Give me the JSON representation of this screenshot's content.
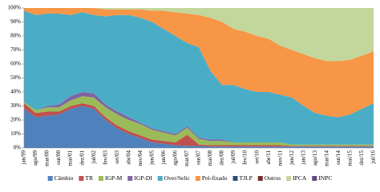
{
  "chart_data": {
    "type": "stacked-area",
    "categories": [
      "jan/99",
      "ago/99",
      "mar/00",
      "out/00",
      "mai/01",
      "dez/01",
      "jul/02",
      "fev/03",
      "set/03",
      "abr/04",
      "nov/04",
      "jun/05",
      "jan/06",
      "ago/06",
      "mar/07",
      "out/07",
      "mai/08",
      "dez/08",
      "jul/09",
      "fev/10",
      "set/10",
      "abr/11",
      "nov/11",
      "jun/12",
      "jan/13",
      "ago/13",
      "mar/14",
      "out/14",
      "mai/15",
      "dez/15",
      "jul/16"
    ],
    "ylim": [
      0,
      100
    ],
    "yticks": [
      {
        "value": 0,
        "label": "0%"
      },
      {
        "value": 10,
        "label": "10%"
      },
      {
        "value": 20,
        "label": "20%"
      },
      {
        "value": 30,
        "label": "30%"
      },
      {
        "value": 40,
        "label": "40%"
      },
      {
        "value": 50,
        "label": "50%"
      },
      {
        "value": 60,
        "label": "60%"
      },
      {
        "value": 70,
        "label": "70%"
      },
      {
        "value": 80,
        "label": "80%"
      },
      {
        "value": 90,
        "label": "90%"
      },
      {
        "value": 100,
        "label": "100%"
      }
    ],
    "series": [
      {
        "name": "Câmbio",
        "color": "#4f81bd",
        "values": [
          28,
          22,
          23,
          24,
          28,
          30,
          28,
          20,
          14,
          10,
          7,
          4,
          3,
          2,
          1.5,
          1.5,
          1,
          1,
          1,
          1,
          1,
          1,
          1,
          1,
          1,
          1,
          1,
          1,
          1,
          1,
          1
        ]
      },
      {
        "name": "TR",
        "color": "#c0504d",
        "values": [
          4,
          3,
          3,
          2,
          2,
          2,
          2,
          2,
          2,
          2,
          2,
          2,
          2,
          2,
          8,
          1,
          1,
          1,
          1,
          1,
          1,
          1,
          1,
          0.5,
          0.5,
          0.5,
          0.5,
          0.5,
          0.5,
          0.5,
          0.5
        ]
      },
      {
        "name": "IGP-M",
        "color": "#9bbb59",
        "values": [
          1,
          2,
          3,
          3,
          4,
          5,
          6,
          7,
          8,
          8,
          8,
          7,
          6,
          5,
          5,
          4,
          3,
          3,
          2,
          2,
          2,
          2,
          2,
          1,
          1,
          1,
          1,
          1,
          1,
          1,
          1
        ]
      },
      {
        "name": "IGP-DI",
        "color": "#8064a2",
        "values": [
          0,
          0,
          1,
          2,
          3,
          3,
          3,
          2,
          2,
          2,
          1,
          1,
          1,
          1,
          1,
          1,
          1,
          1,
          0,
          0,
          0,
          0,
          0,
          0,
          0,
          0,
          0,
          0,
          0,
          0,
          0
        ]
      },
      {
        "name": "Over/Selic",
        "color": "#4bacc6",
        "values": [
          65,
          68,
          66,
          65,
          58,
          57,
          56,
          63,
          69,
          73,
          75,
          76,
          73,
          70,
          59.5,
          64.5,
          49,
          39,
          41,
          38,
          36,
          36,
          34,
          33.5,
          27.5,
          22.5,
          20.5,
          19.5,
          21.5,
          25.5,
          29.5
        ]
      },
      {
        "name": "Pré-fixado",
        "color": "#f79646",
        "values": [
          2,
          5,
          4,
          4,
          5,
          3,
          5,
          5,
          4,
          4,
          6,
          8,
          13,
          17,
          21,
          23,
          38,
          45,
          40,
          41,
          40,
          38,
          35,
          34,
          37,
          39,
          39,
          40,
          39,
          38,
          37
        ]
      },
      {
        "name": "TJLP",
        "color": "#2c4d75",
        "values": [
          0,
          0,
          0,
          0,
          0,
          0,
          0,
          0,
          0,
          0,
          0,
          0,
          0,
          0,
          0,
          0,
          0,
          0,
          0,
          0,
          0,
          0,
          0,
          0,
          0,
          0,
          0,
          0,
          0,
          0,
          0
        ]
      },
      {
        "name": "Outros",
        "color": "#772c2a",
        "values": [
          0,
          0,
          0,
          0,
          0,
          0,
          0,
          0,
          0,
          0,
          0,
          0,
          0,
          0,
          0,
          0,
          0,
          0,
          0,
          0,
          0,
          0,
          0,
          0,
          0,
          0,
          0,
          0,
          0,
          0,
          0
        ]
      },
      {
        "name": "IPCA",
        "color": "#c3d69b",
        "values": [
          0,
          0,
          0,
          0,
          0,
          0,
          0,
          1,
          1,
          1,
          1,
          2,
          2,
          3,
          4,
          5,
          7,
          10,
          15,
          17,
          20,
          22,
          27,
          30,
          33,
          36,
          38,
          38,
          37,
          34,
          31
        ]
      },
      {
        "name": "INPC",
        "color": "#5f497a",
        "values": [
          0,
          0,
          0,
          0,
          0,
          0,
          0,
          0,
          0,
          0,
          0,
          0,
          0,
          0,
          0,
          0,
          0,
          0,
          0,
          0,
          0,
          0,
          0,
          0,
          0,
          0,
          0,
          0,
          0,
          0,
          0
        ]
      }
    ]
  }
}
